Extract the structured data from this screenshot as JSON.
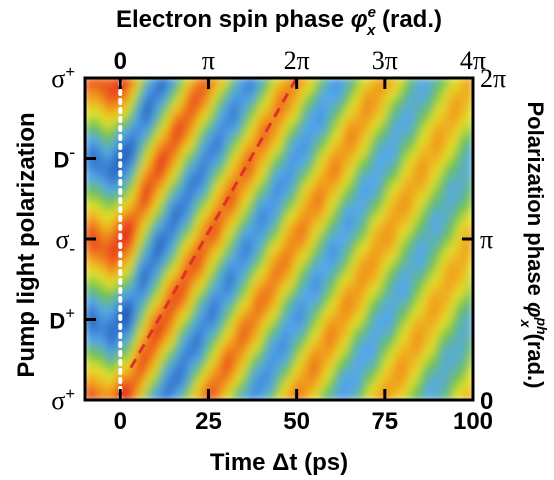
{
  "chart_data": {
    "type": "heatmap",
    "title": "",
    "xlabel": "Time Δt (ps)",
    "ylabel_left": "Pump light polarization",
    "xlabel_top": "Electron spin phase φex (rad.)",
    "xlabel_top_parts": {
      "before": "Electron spin phase ",
      "phi": "φ",
      "sup": "e",
      "sub": "x",
      "after": " (rad.)"
    },
    "ylabel_right": "Polarization phase φphx (rad.)",
    "ylabel_right_parts": {
      "before": "Polarization phase ",
      "phi": "φ",
      "sup": "ph",
      "sub": "x",
      "after": " (rad.)"
    },
    "xlim": [
      -10,
      100
    ],
    "ylim": [
      0,
      2
    ],
    "x_ticks": [
      {
        "value": 0,
        "label": "0"
      },
      {
        "value": 25,
        "label": "25"
      },
      {
        "value": 50,
        "label": "50"
      },
      {
        "value": 75,
        "label": "75"
      },
      {
        "value": 100,
        "label": "100"
      }
    ],
    "top_ticks": [
      {
        "value": 0,
        "label": "0"
      },
      {
        "value": 25,
        "label": "π"
      },
      {
        "value": 50,
        "label": "2π"
      },
      {
        "value": 75,
        "label": "3π"
      },
      {
        "value": 100,
        "label": "4π"
      }
    ],
    "left_ticks": [
      {
        "value": 0,
        "base": "σ",
        "mark": "+",
        "mark_pos": "super"
      },
      {
        "value": 0.5,
        "base": "D",
        "mark": "+",
        "mark_pos": "super"
      },
      {
        "value": 1,
        "base": "σ",
        "mark": "-",
        "mark_pos": "sub"
      },
      {
        "value": 1.5,
        "base": "D",
        "mark": "-",
        "mark_pos": "super"
      },
      {
        "value": 2,
        "base": "σ",
        "mark": "+",
        "mark_pos": "super"
      }
    ],
    "right_ticks": [
      {
        "value": 0,
        "label": "0"
      },
      {
        "value": 1,
        "label": "π"
      },
      {
        "value": 2,
        "label": "2π"
      }
    ],
    "guides": [
      {
        "style": "dotted",
        "color": "#ffffff",
        "points": [
          [
            0,
            0
          ],
          [
            0,
            2
          ]
        ]
      },
      {
        "style": "dashed",
        "color": "#e0302a",
        "points": [
          [
            3,
            0.2
          ],
          [
            50,
            2
          ]
        ]
      }
    ],
    "colormap": [
      "#1b52b3",
      "#55a8ee",
      "#6cc14a",
      "#e5e32b",
      "#f19a1c",
      "#e61d1d"
    ],
    "grid": false
  }
}
